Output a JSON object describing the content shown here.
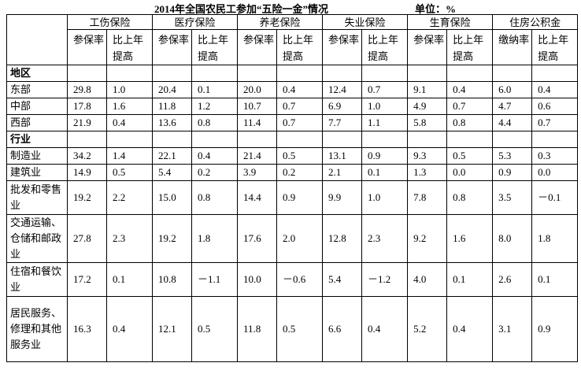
{
  "header": {
    "title": "2014年全国农民工参加“五险一金”情况",
    "unit": "单位：%"
  },
  "table": {
    "corner": "",
    "groups": [
      "工伤保险",
      "医疗保险",
      "养老保险",
      "失业保险",
      "生育保险",
      "住房公积金"
    ],
    "subheaders": [
      "参保率",
      "比上年提高",
      "参保率",
      "比上年提高",
      "参保率",
      "比上年提高",
      "参保率",
      "比上年提高",
      "参保率",
      "比上年提高",
      "缴纳率",
      "比上年提高"
    ],
    "sections": [
      {
        "title": "地区",
        "rows": [
          {
            "label": "东部",
            "values": [
              "29.8",
              "1.0",
              "20.4",
              "0.1",
              "20.0",
              "0.4",
              "12.4",
              "0.7",
              "9.1",
              "0.4",
              "6.0",
              "0.4"
            ]
          },
          {
            "label": "中部",
            "values": [
              "17.8",
              "1.6",
              "11.8",
              "1.2",
              "10.7",
              "0.7",
              "6.9",
              "1.0",
              "4.9",
              "0.7",
              "4.7",
              "0.6"
            ]
          },
          {
            "label": "西部",
            "values": [
              "21.9",
              "0.4",
              "13.6",
              "0.8",
              "11.4",
              "0.7",
              "7.7",
              "1.1",
              "5.8",
              "0.8",
              "4.4",
              "0.7"
            ]
          }
        ]
      },
      {
        "title": "行业",
        "rows": [
          {
            "label": "制造业",
            "values": [
              "34.2",
              "1.4",
              "22.1",
              "0.4",
              "21.4",
              "0.5",
              "13.1",
              "0.9",
              "9.3",
              "0.5",
              "5.3",
              "0.3"
            ]
          },
          {
            "label": "建筑业",
            "values": [
              "14.9",
              "0.5",
              "5.4",
              "0.2",
              "3.9",
              "0.2",
              "2.1",
              "0.1",
              "1.3",
              "0.0",
              "0.9",
              "0.0"
            ]
          },
          {
            "label": "批发和零售业",
            "values": [
              "19.2",
              "2.2",
              "15.0",
              "0.8",
              "14.4",
              "0.9",
              "9.9",
              "1.0",
              "7.8",
              "0.8",
              "3.5",
              "－0.1"
            ]
          },
          {
            "label": "交通运输、仓储和邮政业",
            "values": [
              "27.8",
              "2.3",
              "19.2",
              "1.8",
              "17.6",
              "2.0",
              "12.8",
              "2.3",
              "9.2",
              "1.6",
              "8.0",
              "1.8"
            ]
          },
          {
            "label": "住宿和餐饮业",
            "values": [
              "17.2",
              "0.1",
              "10.8",
              "－1.1",
              "10.0",
              "－0.6",
              "5.4",
              "－1.2",
              "4.0",
              "0.1",
              "2.6",
              "0.1"
            ]
          },
          {
            "label": "居民服务、修理和其他服务业",
            "values": [
              "16.3",
              "0.4",
              "12.1",
              "0.5",
              "11.8",
              "0.5",
              "6.6",
              "0.4",
              "5.2",
              "0.4",
              "3.1",
              "0.9"
            ]
          }
        ]
      }
    ]
  }
}
